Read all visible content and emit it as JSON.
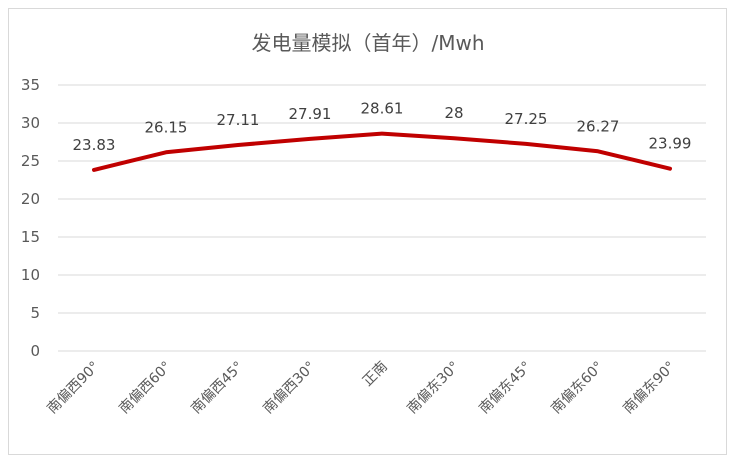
{
  "chart_data": {
    "type": "line",
    "title": "发电量模拟（首年）/Mwh",
    "categories": [
      "南偏西90°",
      "南偏西60°",
      "南偏西45°",
      "南偏西30°",
      "正南",
      "南偏东30°",
      "南偏东45°",
      "南偏东60°",
      "南偏东90°"
    ],
    "series": [
      {
        "values": [
          23.83,
          26.15,
          27.11,
          27.91,
          28.61,
          28,
          27.25,
          26.27,
          23.99
        ],
        "labels": [
          "23.83",
          "26.15",
          "27.11",
          "27.91",
          "28.61",
          "28",
          "27.25",
          "26.27",
          "23.99"
        ],
        "color": "#c00000"
      }
    ],
    "ylim": [
      0,
      35
    ],
    "yticks": [
      "0",
      "5",
      "10",
      "15",
      "20",
      "25",
      "30",
      "35"
    ],
    "grid": true,
    "legend": "none"
  }
}
